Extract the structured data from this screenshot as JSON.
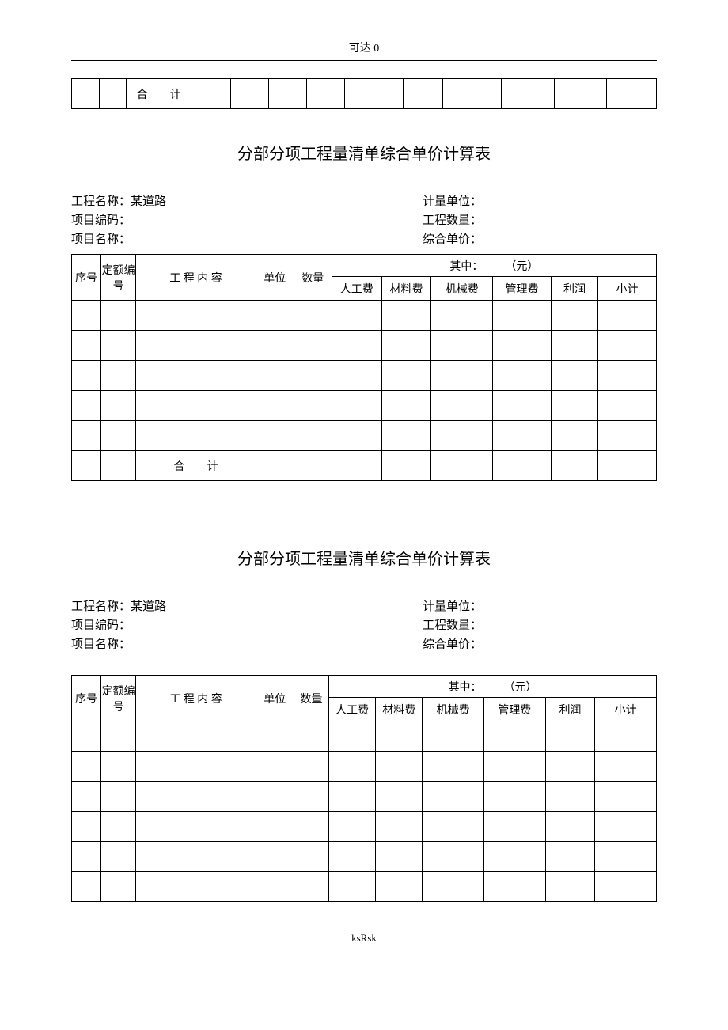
{
  "header_text": "可达 0",
  "footer_text": "ksRsk",
  "top_strip": {
    "total_label": "合　　计",
    "col_widths_percent": [
      4.7,
      4.7,
      11.0,
      6.8,
      6.5,
      6.5,
      6.5,
      10.0,
      6.8,
      10.0,
      9.0,
      9.0,
      8.5
    ]
  },
  "form": {
    "title": "分部分项工程量清单综合单价计算表",
    "meta": {
      "left": [
        {
          "label": "工程名称：",
          "value": "某道路"
        },
        {
          "label": "项目编码：",
          "value": ""
        },
        {
          "label": "项目名称：",
          "value": ""
        }
      ],
      "right": [
        {
          "label": "计量单位：",
          "value": ""
        },
        {
          "label": "工程数量：",
          "value": ""
        },
        {
          "label": "综合单价：",
          "value": ""
        }
      ]
    },
    "headers": {
      "seq": "序号",
      "code": "定额编号",
      "content": "工 程 内 容",
      "unit": "单位",
      "qty": "数量",
      "among": "其中：",
      "yuan": "（元）",
      "labor": "人工费",
      "material": "材料费",
      "machine": "机械费",
      "manage": "管理费",
      "profit": "利润",
      "subtotal": "小计"
    },
    "total_label": "合　　计",
    "data_row_count": 5,
    "col_widths_percent": [
      5.0,
      6.0,
      20.5,
      6.5,
      6.5,
      8.5,
      8.5,
      10.5,
      10.0,
      8.0,
      10.0
    ]
  },
  "form2": {
    "col_widths_percent": [
      5.0,
      6.0,
      20.5,
      6.5,
      6.0,
      8.0,
      8.0,
      10.5,
      10.5,
      8.5,
      10.5
    ],
    "data_row_count": 6
  }
}
